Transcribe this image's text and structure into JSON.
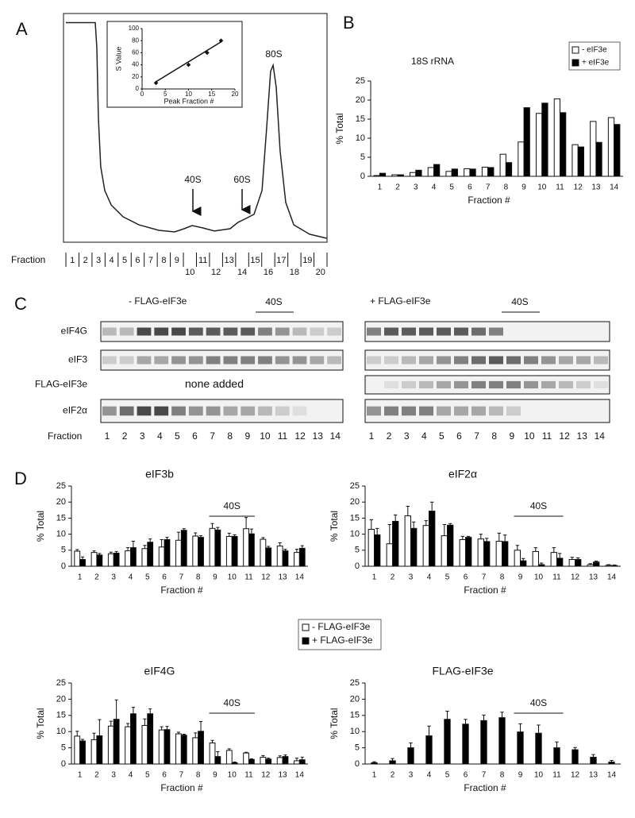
{
  "panel_labels": [
    "A",
    "B",
    "C",
    "D"
  ],
  "chart_data": [
    {
      "type": "line",
      "xlabel": "Fraction",
      "color": "#222",
      "x": [
        0.5,
        2.75,
        2.87,
        2.99,
        3.17,
        3.48,
        3.97,
        4.88,
        6.09,
        7.61,
        8.83,
        9.56,
        10.17,
        10.96,
        11.87,
        13.08,
        13.69,
        14.3,
        14.91,
        15.52,
        15.88,
        16.18,
        16.37,
        16.61,
        16.91,
        17.34,
        17.95,
        19.16,
        20.5
      ],
      "values": [
        96,
        96,
        85,
        54,
        33,
        22.6,
        16.3,
        11.1,
        7.6,
        5.2,
        4.5,
        5.9,
        7.3,
        6.3,
        4.9,
        5.9,
        8.7,
        10.4,
        12.2,
        22.6,
        50.3,
        74.7,
        77.4,
        67.7,
        39.9,
        17.4,
        7.6,
        3.5,
        1.7
      ],
      "xlim": [
        0.5,
        20.5
      ],
      "ylim": [
        0,
        100
      ],
      "xticks": [
        1,
        2,
        3,
        4,
        5,
        6,
        7,
        8,
        9,
        10,
        11,
        12,
        13,
        14,
        15,
        16,
        17,
        18,
        19,
        20
      ],
      "annotations": [
        "40S",
        "60S",
        "80S"
      ]
    },
    {
      "type": "scatter",
      "xlabel": "Peak Fraction #",
      "ylabel": "S Value",
      "color": "#111",
      "x": [
        3,
        10,
        14,
        17
      ],
      "values": [
        10,
        40,
        60,
        80
      ],
      "trendline": {
        "x": [
          3,
          17
        ],
        "values": [
          12,
          78
        ]
      },
      "xlim": [
        0,
        20
      ],
      "xticks": [
        0,
        5,
        10,
        15,
        20
      ],
      "ylim": [
        0,
        100
      ],
      "yticks": [
        0,
        20,
        40,
        60,
        80,
        100
      ]
    },
    {
      "type": "bar",
      "title": "18S rRNA",
      "xlabel": "Fraction #",
      "ylabel": "% Total",
      "categories": [
        "1",
        "2",
        "3",
        "4",
        "5",
        "6",
        "7",
        "8",
        "9",
        "10",
        "11",
        "12",
        "13",
        "14"
      ],
      "series": [
        {
          "name": "- eIF3e",
          "color": "#ffffff",
          "values": [
            0.2,
            0.4,
            1.0,
            2.3,
            1.3,
            2.0,
            2.4,
            5.8,
            9.0,
            16.5,
            20.3,
            8.3,
            14.4,
            15.4
          ]
        },
        {
          "name": "+ eIF3e",
          "color": "#000000",
          "values": [
            0.8,
            0.4,
            1.6,
            3.1,
            1.9,
            1.9,
            2.3,
            3.6,
            18.0,
            19.2,
            16.7,
            7.7,
            8.9,
            13.6
          ]
        }
      ],
      "ylim": [
        0,
        25
      ],
      "yticks": [
        0,
        5,
        10,
        15,
        20,
        25
      ],
      "legend": "upper right"
    },
    {
      "type": "bar",
      "title": "eIF3b",
      "xlabel": "Fraction #",
      "ylabel": "% Total",
      "annotation": "40S",
      "categories": [
        "1",
        "2",
        "3",
        "4",
        "5",
        "6",
        "7",
        "8",
        "9",
        "10",
        "11",
        "12",
        "13",
        "14"
      ],
      "series": [
        {
          "color": "#ffffff",
          "values": [
            4.7,
            4.3,
            3.9,
            4.8,
            5.5,
            6.0,
            8.1,
            9.4,
            11.8,
            9.3,
            11.7,
            8.4,
            6.3,
            4.3
          ],
          "errors": [
            0.5,
            0.5,
            0.5,
            1.0,
            1.0,
            2.3,
            2.5,
            1.0,
            1.5,
            1.0,
            3.5,
            0.5,
            1.0,
            1.0
          ]
        },
        {
          "color": "#000000",
          "values": [
            2.1,
            3.5,
            4.1,
            5.8,
            7.5,
            8.3,
            11.2,
            9.0,
            11.3,
            9.3,
            10.1,
            5.7,
            4.8,
            5.6
          ],
          "errors": [
            0.8,
            0.5,
            0.5,
            2.0,
            1.0,
            0.7,
            0.5,
            0.5,
            0.8,
            0.5,
            1.5,
            0.5,
            0.5,
            0.8
          ]
        }
      ],
      "ylim": [
        0,
        25
      ],
      "yticks": [
        0,
        5,
        10,
        15,
        20,
        25
      ]
    },
    {
      "type": "bar",
      "title": "eIF2α",
      "xlabel": "Fraction #",
      "ylabel": "% Total",
      "annotation": "40S",
      "categories": [
        "1",
        "2",
        "3",
        "4",
        "5",
        "6",
        "7",
        "8",
        "9",
        "10",
        "11",
        "12",
        "13",
        "14"
      ],
      "series": [
        {
          "color": "#ffffff",
          "values": [
            11.5,
            7.0,
            15.7,
            12.7,
            9.5,
            8.3,
            8.5,
            7.8,
            5.0,
            4.6,
            4.3,
            2.1,
            0.5,
            0.3
          ],
          "errors": [
            3,
            6,
            3,
            1.5,
            3.5,
            1,
            1.5,
            2.5,
            1.5,
            1.2,
            1.5,
            0.7,
            0.3,
            0.2
          ]
        },
        {
          "color": "#000000",
          "values": [
            9.8,
            14.0,
            11.8,
            17.2,
            12.8,
            9.0,
            7.7,
            7.7,
            1.7,
            0.5,
            2.5,
            2.1,
            1.3,
            0.2
          ],
          "errors": [
            2,
            2,
            2,
            2.8,
            0.5,
            0.3,
            1.0,
            2.0,
            0.7,
            0.5,
            1.5,
            0.5,
            0.3,
            0.2
          ]
        }
      ],
      "ylim": [
        0,
        25
      ],
      "yticks": [
        0,
        5,
        10,
        15,
        20,
        25
      ]
    },
    {
      "type": "bar",
      "title": "eIF4G",
      "xlabel": "Fraction #",
      "ylabel": "% Total",
      "annotation": "40S",
      "categories": [
        "1",
        "2",
        "3",
        "4",
        "5",
        "6",
        "7",
        "8",
        "9",
        "10",
        "11",
        "12",
        "13",
        "14"
      ],
      "series": [
        {
          "color": "#ffffff",
          "values": [
            8.6,
            7.5,
            11.7,
            11.5,
            11.9,
            10.5,
            9.3,
            8.1,
            6.5,
            4.2,
            3.4,
            2.1,
            2.0,
            1.0
          ],
          "errors": [
            1.5,
            2,
            1.5,
            1,
            2,
            1,
            0.5,
            1.5,
            0.8,
            0.5,
            0.2,
            0.5,
            0.5,
            0.8
          ]
        },
        {
          "color": "#000000",
          "values": [
            7.1,
            8.7,
            13.8,
            15.5,
            15.5,
            10.6,
            8.9,
            10.1,
            2.3,
            0.4,
            1.4,
            1.5,
            2.3,
            1.3
          ],
          "errors": [
            0.5,
            5,
            6,
            2,
            1.5,
            1,
            0.3,
            3,
            1.5,
            0.2,
            0.2,
            0.3,
            0.5,
            0.8
          ]
        }
      ],
      "ylim": [
        0,
        25
      ],
      "yticks": [
        0,
        5,
        10,
        15,
        20,
        25
      ]
    },
    {
      "type": "bar",
      "title": "FLAG-eIF3e",
      "xlabel": "Fraction #",
      "ylabel": "% Total",
      "annotation": "40S",
      "categories": [
        "1",
        "2",
        "3",
        "4",
        "5",
        "6",
        "7",
        "8",
        "9",
        "10",
        "11",
        "12",
        "13",
        "14"
      ],
      "series": [
        {
          "color": "#000000",
          "values": [
            0.4,
            1.0,
            5.0,
            8.7,
            13.8,
            12.3,
            13.4,
            14.3,
            9.9,
            9.5,
            5.0,
            4.4,
            2.1,
            0.6
          ],
          "errors": [
            0.3,
            0.7,
            1.5,
            3,
            2.5,
            1.5,
            1.7,
            1.7,
            2.5,
            2.5,
            1.8,
            0.7,
            0.8,
            0.5
          ]
        }
      ],
      "ylim": [
        0,
        25
      ],
      "yticks": [
        0,
        5,
        10,
        15,
        20,
        25
      ]
    }
  ],
  "d_legend": [
    {
      "name": "- FLAG-eIF3e",
      "color": "#ffffff"
    },
    {
      "name": "+ FLAG-eIF3e",
      "color": "#000000"
    }
  ],
  "blots": {
    "left_header": "- FLAG-eIF3e",
    "right_header": "+ FLAG-eIF3e",
    "marker": "40S",
    "rows": [
      "eIF4G",
      "eIF3",
      "FLAG-eIF3e",
      "eIF2α"
    ],
    "none_added": "none added",
    "fraction_label": "Fraction",
    "fractions": [
      1,
      2,
      3,
      4,
      5,
      6,
      7,
      8,
      9,
      10,
      11,
      12,
      13,
      14
    ]
  }
}
